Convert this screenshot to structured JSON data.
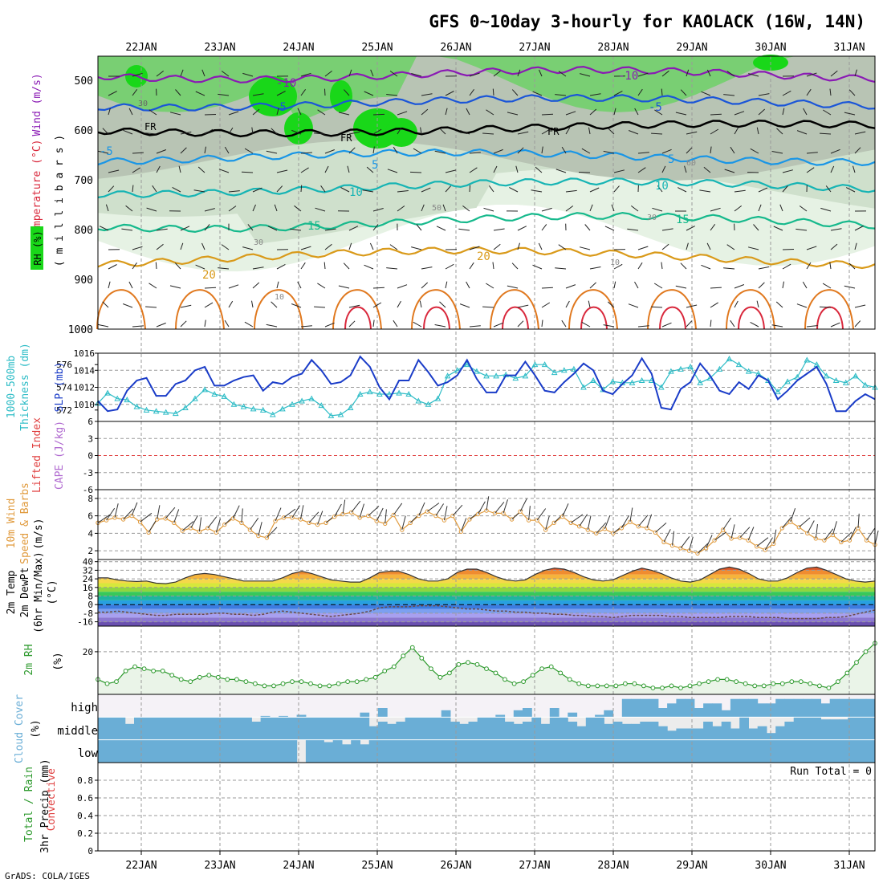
{
  "title": "GFS 0~10day 3-hourly for KAOLACK (16W, 14N)",
  "footer": "GrADS: COLA/IGES",
  "dates": [
    "22JAN",
    "23JAN",
    "24JAN",
    "25JAN",
    "26JAN",
    "27JAN",
    "28JAN",
    "29JAN",
    "30JAN",
    "31JAN"
  ],
  "colors": {
    "frame": "#000000",
    "grid": "#9a9a9a",
    "rh_light": "#e6f2e4",
    "rh_mid": "#cfe0cc",
    "rh_gray": "#b8c4b4",
    "rh_green": "#79cf73",
    "rh_bright": "#19d719",
    "temp_m10": "#8a1ab4",
    "temp_m5": "#1a55d8",
    "temp_fr": "#000000",
    "temp_5": "#1a96e6",
    "temp_10": "#16b4b4",
    "temp_15": "#16b98c",
    "temp_20": "#d99a1a",
    "temp_25": "#e0781e",
    "temp_30": "#d9283c",
    "slp": "#1a3cc8",
    "thickness": "#2dbcc6",
    "lifted_zero": "#e04040",
    "wind_speed": "#e09a3c",
    "rh2m": "#2e9a2e",
    "rh2m_fill": "#eaf4e8",
    "dewpt": "#6a4a4a",
    "cloud": "#6aaed6",
    "cloud_bg": "#ececec",
    "cloud_high_bg": "#f5f2f7"
  },
  "panels": {
    "upper": {
      "ylabel_rh": "RH (%)",
      "ylabel_temp": "Temperature (°C)",
      "ylabel_wind": "Wind (m/s)",
      "ylabel_pressure": "( m i l l i b a r s )",
      "yticks": [
        "500",
        "600",
        "700",
        "800",
        "900",
        "1000"
      ],
      "contour_labels": [
        "-10",
        "-10",
        "-5",
        "-5",
        "FR",
        "FR",
        "FR",
        "-5",
        "5",
        "5",
        "10",
        "10",
        "15",
        "15",
        "20",
        "20",
        "30",
        "30",
        "60",
        "50",
        "10",
        "30",
        "10"
      ]
    },
    "slp": {
      "ylabel1": "1000-500mb",
      "ylabel2": "Thickness (dm)",
      "ylabel3": "SLP (mb)",
      "yticks_right": [
        "1016",
        "1014",
        "1012",
        "1010"
      ],
      "yticks_left": [
        "576",
        "574",
        "572"
      ]
    },
    "cape": {
      "ylabel1": "Lifted Index",
      "ylabel2": "CAPE (J/kg)",
      "yticks": [
        "-6",
        "-3",
        "0",
        "3",
        "6"
      ]
    },
    "wind10m": {
      "ylabel1": "10m Wind",
      "ylabel2": "Speed & Barbs",
      "ylabel3": "(m/s)",
      "yticks": [
        "8",
        "6",
        "4",
        "2"
      ]
    },
    "temp2m": {
      "ylabel1": "2m Temp",
      "ylabel2": "2m DewPt",
      "ylabel3": "(6hr Min/Max)",
      "ylabel4": "(°C)",
      "yticks": [
        "40",
        "32",
        "24",
        "16",
        "8",
        "0",
        "-8",
        "-16"
      ]
    },
    "rh2m": {
      "ylabel1": "2m RH",
      "ylabel2": "(%)",
      "yticks": [
        "20"
      ]
    },
    "cloud": {
      "ylabel1": "Cloud Cover",
      "ylabel2": "(%)",
      "levels": [
        "high",
        "middle",
        "low"
      ]
    },
    "precip": {
      "ylabel1": "Total / Rain",
      "ylabel2": "Convective",
      "ylabel3": "3hr Precip (mm)",
      "run_total": "Run Total = 0",
      "yticks": [
        "0.8",
        "0.6",
        "0.4",
        "0.2",
        "0"
      ]
    }
  },
  "chart_data": [
    {
      "type": "line",
      "panel": "slp",
      "ylim_left": [
        571,
        577
      ],
      "ylim_right": [
        1008,
        1016
      ],
      "series": [
        {
          "name": "SLP (mb)",
          "axis": "right",
          "values": [
            1010.4,
            1009.2,
            1009.4,
            1011.6,
            1012.8,
            1013.1,
            1011.0,
            1011.0,
            1012.4,
            1012.8,
            1014.0,
            1014.4,
            1012.2,
            1012.2,
            1012.8,
            1013.2,
            1013.4,
            1011.6,
            1012.6,
            1012.4,
            1013.2,
            1013.6,
            1015.2,
            1014.0,
            1012.4,
            1012.6,
            1013.4,
            1015.6,
            1014.4,
            1012.0,
            1010.6,
            1012.8,
            1012.8,
            1015.2,
            1013.8,
            1012.2,
            1012.6,
            1013.4,
            1015.2,
            1013.0,
            1011.4,
            1011.4,
            1013.4,
            1013.4,
            1015.0,
            1013.4,
            1011.6,
            1011.4,
            1012.6,
            1013.6,
            1014.8,
            1014.0,
            1011.6,
            1011.2,
            1012.4,
            1013.4,
            1015.4,
            1013.6,
            1009.6,
            1009.4,
            1011.8,
            1012.6,
            1014.8,
            1013.4,
            1011.6,
            1011.2,
            1012.6,
            1011.8,
            1013.4,
            1012.8,
            1010.6,
            1011.6,
            1012.8,
            1013.6,
            1014.4,
            1012.4,
            1009.2,
            1009.2,
            1010.4,
            1011.2,
            1010.6
          ]
        },
        {
          "name": "1000-500mb Thickness (dm)",
          "axis": "left",
          "values": [
            572.6,
            573.5,
            573.0,
            572.9,
            572.3,
            572.0,
            571.9,
            571.8,
            571.7,
            572.2,
            573.0,
            573.8,
            573.4,
            573.2,
            572.5,
            572.3,
            572.1,
            572.0,
            571.6,
            572.1,
            572.5,
            572.8,
            573.0,
            572.4,
            571.5,
            571.6,
            572.2,
            573.4,
            573.6,
            573.4,
            573.4,
            573.5,
            573.4,
            572.8,
            572.5,
            573.0,
            575.0,
            575.5,
            576.0,
            575.4,
            575.0,
            575.0,
            575.1,
            574.8,
            575.0,
            576.0,
            576.0,
            575.3,
            575.5,
            575.6,
            574.0,
            574.6,
            573.8,
            574.5,
            574.4,
            574.4,
            574.6,
            574.6,
            574.0,
            575.4,
            575.6,
            575.8,
            574.4,
            574.8,
            575.6,
            576.5,
            576.0,
            575.4,
            575.2,
            574.6,
            573.6,
            574.5,
            574.9,
            576.4,
            576.0,
            575.0,
            574.6,
            574.4,
            575.0,
            574.2,
            574.0
          ]
        }
      ]
    },
    {
      "type": "line",
      "panel": "cape",
      "ylim": [
        -6,
        6
      ],
      "series": [
        {
          "name": "Lifted Index",
          "values": [
            0
          ]
        }
      ]
    },
    {
      "type": "line",
      "panel": "wind10m",
      "ylim": [
        1,
        9
      ],
      "series": [
        {
          "name": "10m Wind Speed",
          "values": [
            5.2,
            5.5,
            5.8,
            5.6,
            6.0,
            5.3,
            4.1,
            5.6,
            5.7,
            5.2,
            4.3,
            4.6,
            4.2,
            4.6,
            4.1,
            5.0,
            5.7,
            5.2,
            4.4,
            3.7,
            3.5,
            5.4,
            5.8,
            5.8,
            5.6,
            5.2,
            5.0,
            5.2,
            5.9,
            6.2,
            6.4,
            5.8,
            6.0,
            5.4,
            5.1,
            6.1,
            4.4,
            5.2,
            6.0,
            6.5,
            6.0,
            5.5,
            6.0,
            4.2,
            5.6,
            6.2,
            6.6,
            6.3,
            6.3,
            5.6,
            6.5,
            5.5,
            5.5,
            4.4,
            5.2,
            5.9,
            5.2,
            4.8,
            4.4,
            4.0,
            4.5,
            4.0,
            4.6,
            5.3,
            4.8,
            4.6,
            4.1,
            3.0,
            2.6,
            2.3,
            2.0,
            1.7,
            2.3,
            3.2,
            4.4,
            3.4,
            3.5,
            3.2,
            2.5,
            2.1,
            2.8,
            4.6,
            5.3,
            4.7,
            4.0,
            3.4,
            3.2,
            3.8,
            3.0,
            3.2,
            4.6,
            3.2,
            2.7
          ]
        }
      ]
    },
    {
      "type": "area",
      "panel": "temp2m",
      "ylim": [
        -20,
        42
      ],
      "series": [
        {
          "name": "2m Temp",
          "values": [
            25,
            25,
            23,
            22,
            21.5,
            22,
            20,
            19.5,
            21,
            25,
            28,
            29,
            28,
            26,
            24,
            22,
            22,
            22,
            22,
            25,
            29,
            31,
            29,
            26,
            23,
            22,
            21,
            21,
            25,
            30,
            31,
            31,
            28,
            24,
            22,
            22,
            24,
            30,
            33,
            33,
            30,
            26,
            23,
            22,
            23,
            28,
            32,
            34,
            33,
            30,
            26,
            23,
            22,
            23,
            27,
            31,
            34,
            32,
            29,
            25,
            22,
            21,
            23,
            28,
            33,
            35,
            33,
            29,
            24,
            22,
            22,
            25,
            30,
            34,
            35,
            32,
            28,
            24,
            22,
            21,
            22
          ]
        },
        {
          "name": "2m DewPt",
          "values": [
            -7,
            -7,
            -6,
            -7,
            -8,
            -9,
            -10,
            -10,
            -9,
            -9,
            -9,
            -9,
            -8,
            -8,
            -9,
            -9,
            -10,
            -9,
            -7,
            -6,
            -7,
            -8,
            -9,
            -10,
            -11,
            -10,
            -9,
            -8,
            -6,
            -3,
            -2,
            -2,
            -2,
            -1,
            -1,
            -1,
            -2,
            -3,
            -4,
            -4,
            -5,
            -6,
            -6,
            -7,
            -7,
            -8,
            -8,
            -9,
            -9,
            -10,
            -10,
            -11,
            -11,
            -12,
            -11,
            -10,
            -10,
            -10,
            -10,
            -11,
            -11,
            -12,
            -12,
            -12,
            -12,
            -11,
            -11,
            -11,
            -12,
            -12,
            -12,
            -13,
            -13,
            -13,
            -13,
            -12,
            -12,
            -11,
            -9,
            -7,
            -5
          ]
        }
      ]
    },
    {
      "type": "area",
      "panel": "rh2m",
      "ylim": [
        0,
        32
      ],
      "series": [
        {
          "name": "2m RH",
          "values": [
            7,
            5,
            6,
            11,
            13,
            12,
            11,
            11,
            9,
            7,
            6,
            8,
            9,
            8,
            7,
            7,
            6,
            5,
            4,
            4,
            5,
            6,
            6,
            5,
            4,
            4,
            5,
            6,
            6,
            7,
            8,
            11,
            13,
            18,
            22,
            17,
            12,
            8,
            10,
            14,
            15,
            14,
            12,
            10,
            7,
            5,
            6,
            9,
            12,
            13,
            10,
            7,
            5,
            4,
            4,
            4,
            4,
            5,
            5,
            4,
            3,
            3,
            4,
            3,
            4,
            5,
            6,
            7,
            7,
            6,
            5,
            4,
            4,
            5,
            5,
            6,
            6,
            5,
            4,
            3,
            6,
            10,
            15,
            20,
            24
          ]
        }
      ]
    },
    {
      "type": "bar",
      "panel": "cloud",
      "series": [
        {
          "name": "high",
          "values": [
            0,
            0,
            0,
            0,
            0,
            0,
            0,
            0,
            0,
            0,
            0,
            0,
            0,
            0,
            0,
            0,
            0,
            0,
            5,
            0,
            5,
            0,
            10,
            0,
            0,
            0,
            0,
            0,
            0,
            20,
            0,
            40,
            0,
            0,
            0,
            0,
            0,
            0,
            30,
            0,
            0,
            0,
            0,
            0,
            10,
            0,
            30,
            40,
            0,
            0,
            40,
            0,
            20,
            0,
            0,
            10,
            30,
            0,
            80,
            80,
            80,
            80,
            40,
            60,
            80,
            80,
            40,
            60,
            60,
            30,
            80,
            80,
            80,
            60,
            60,
            80,
            80,
            80,
            80,
            80,
            60,
            80,
            80,
            80,
            80,
            80
          ]
        },
        {
          "name": "middle",
          "values": [
            100,
            100,
            100,
            70,
            100,
            100,
            100,
            100,
            100,
            100,
            100,
            100,
            100,
            100,
            100,
            100,
            100,
            80,
            100,
            100,
            100,
            100,
            100,
            100,
            100,
            100,
            100,
            100,
            100,
            100,
            60,
            80,
            70,
            80,
            100,
            100,
            100,
            100,
            100,
            80,
            70,
            80,
            100,
            100,
            100,
            80,
            70,
            80,
            100,
            70,
            100,
            100,
            80,
            60,
            100,
            100,
            70,
            80,
            70,
            70,
            80,
            80,
            60,
            40,
            50,
            50,
            50,
            80,
            60,
            80,
            50,
            100,
            50,
            60,
            30,
            60,
            80,
            100,
            100,
            100,
            90,
            90,
            90,
            100,
            100,
            100
          ]
        },
        {
          "name": "low",
          "values": [
            100,
            100,
            100,
            100,
            100,
            100,
            100,
            100,
            100,
            100,
            100,
            100,
            100,
            100,
            100,
            100,
            100,
            100,
            100,
            100,
            100,
            100,
            0,
            100,
            100,
            90,
            100,
            80,
            100,
            80,
            100,
            100,
            100,
            100,
            100,
            100,
            100,
            100,
            100,
            100,
            100,
            100,
            100,
            100,
            100,
            100,
            100,
            100,
            100,
            100,
            100,
            100,
            100,
            100,
            100,
            100,
            100,
            100,
            100,
            100,
            100,
            100,
            100,
            100,
            100,
            100,
            100,
            100,
            100,
            100,
            100,
            100,
            100,
            100,
            100,
            100,
            100,
            100,
            100,
            100,
            100,
            100,
            100,
            100,
            100,
            100
          ]
        }
      ]
    },
    {
      "type": "bar",
      "panel": "precip",
      "ylim": [
        0,
        1
      ],
      "series": [
        {
          "name": "3hr Precip (mm)",
          "values": [
            0,
            0,
            0,
            0,
            0,
            0,
            0,
            0,
            0,
            0
          ]
        }
      ]
    }
  ]
}
